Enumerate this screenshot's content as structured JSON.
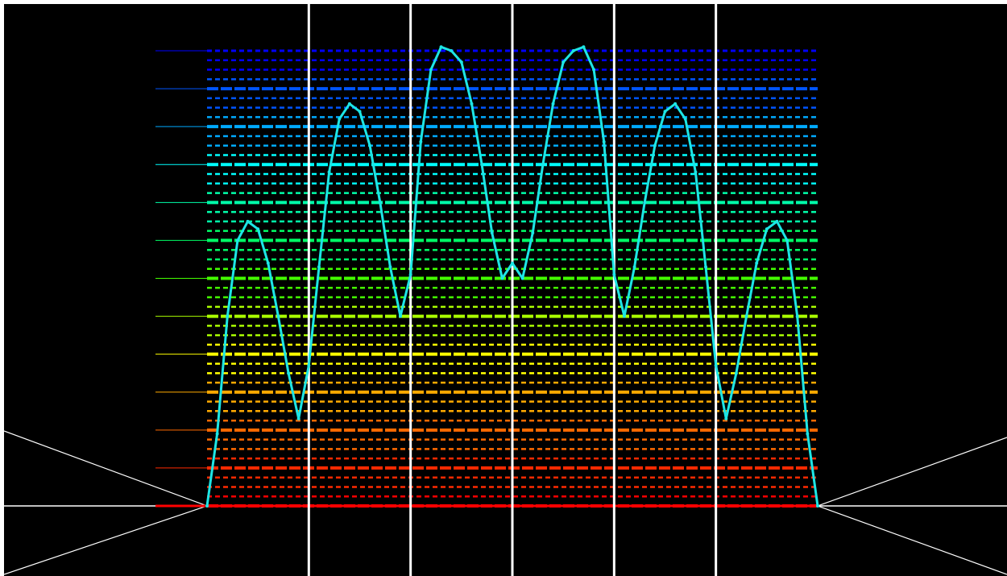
{
  "chart_data": {
    "type": "line",
    "title": "",
    "xlabel": "",
    "ylabel": "",
    "grid": true,
    "background_color": "#000000",
    "xlim": [
      -2,
      7
    ],
    "ylim": [
      0,
      12
    ],
    "y_levels": [
      0,
      1,
      2,
      3,
      4,
      5,
      6,
      7,
      8,
      9,
      10,
      11,
      12
    ],
    "level_colors": [
      "#ff0000",
      "#ff2a00",
      "#ff6a00",
      "#ffaa00",
      "#ffff00",
      "#aaff00",
      "#44ff00",
      "#00ff66",
      "#00ffaa",
      "#00ffff",
      "#00aaff",
      "#0055ff",
      "#0000ff"
    ],
    "vertical_markers": [
      1,
      2,
      3,
      4,
      5
    ],
    "support_interval": [
      0,
      6
    ],
    "series": [
      {
        "color": "#1de5e5",
        "x": [
          0,
          0.1,
          0.2,
          0.3,
          0.4,
          0.5,
          0.6,
          0.7,
          0.8,
          0.9,
          1.0,
          1.1,
          1.2,
          1.3,
          1.4,
          1.5,
          1.6,
          1.7,
          1.8,
          1.9,
          2.0,
          2.1,
          2.2,
          2.3,
          2.4,
          2.5,
          2.6,
          2.7,
          2.8,
          2.9,
          3.0,
          3.1,
          3.2,
          3.3,
          3.4,
          3.5,
          3.6,
          3.7,
          3.8,
          3.9,
          4.0,
          4.1,
          4.2,
          4.3,
          4.4,
          4.5,
          4.6,
          4.7,
          4.8,
          4.9,
          5.0,
          5.1,
          5.2,
          5.3,
          5.4,
          5.5,
          5.6,
          5.7,
          5.8,
          5.9,
          6.0
        ],
        "y": [
          0.0,
          1.9,
          5.0,
          7.0,
          7.5,
          7.3,
          6.4,
          5.0,
          3.5,
          2.3,
          3.7,
          6.3,
          8.8,
          10.2,
          10.6,
          10.4,
          9.5,
          8.0,
          6.3,
          5.0,
          6.1,
          9.6,
          11.5,
          12.1,
          12.0,
          11.7,
          10.6,
          9.0,
          7.2,
          6.0,
          6.4,
          6.0,
          7.2,
          9.0,
          10.6,
          11.7,
          12.0,
          12.1,
          11.5,
          9.6,
          6.1,
          5.0,
          6.3,
          8.0,
          9.5,
          10.4,
          10.6,
          10.2,
          8.8,
          6.3,
          3.7,
          2.3,
          3.5,
          5.0,
          6.4,
          7.3,
          7.5,
          7.0,
          5.0,
          1.9,
          0.0
        ]
      }
    ]
  }
}
